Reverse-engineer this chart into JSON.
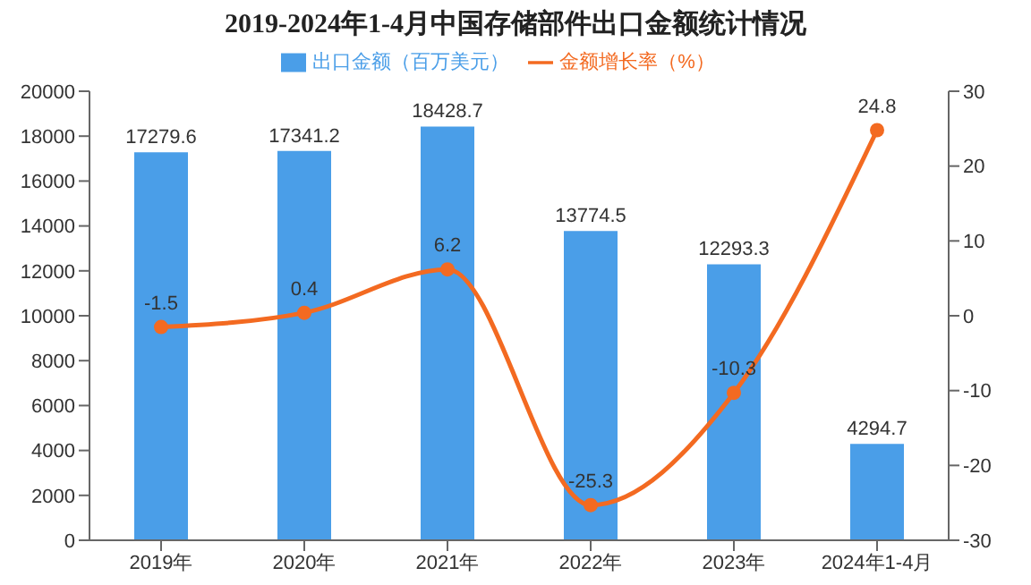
{
  "chart_data": {
    "type": "bar",
    "title": "2019-2024年1-4月中国存储部件出口金额统计情况",
    "categories": [
      "2019年",
      "2020年",
      "2021年",
      "2022年",
      "2023年",
      "2024年1-4月"
    ],
    "series": [
      {
        "name": "出口金额（百万美元）",
        "color": "#4a9ee8",
        "values": [
          17279.6,
          17341.2,
          18428.7,
          13774.5,
          12293.3,
          4294.7
        ]
      },
      {
        "name": "金额增长率（%）",
        "type": "line",
        "axis": "y2",
        "color": "#f36a21",
        "values": [
          -1.5,
          0.4,
          6.2,
          -25.3,
          -10.3,
          24.8
        ]
      }
    ],
    "ylim": [
      0,
      20000
    ],
    "yticks": [
      0,
      2000,
      4000,
      6000,
      8000,
      10000,
      12000,
      14000,
      16000,
      18000,
      20000
    ],
    "y2lim": [
      -30,
      30
    ],
    "y2ticks": [
      -30,
      -20,
      -10,
      0,
      10,
      20,
      30
    ],
    "data_labels": true,
    "legend": "top",
    "grid": false,
    "marker": "circle"
  }
}
